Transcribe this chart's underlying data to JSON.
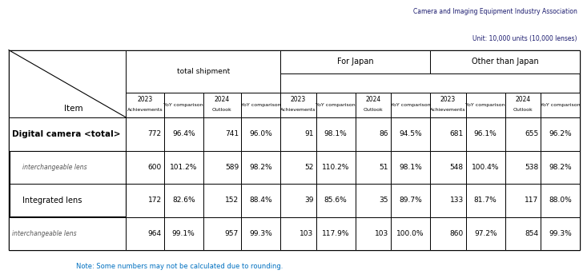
{
  "title_top_right": "Camera and Imaging Equipment Industry Association",
  "unit_label": "Unit: 10,000 units (10,000 lenses)",
  "note": "Note: Some numbers may not be calculated due to rounding.",
  "rows": [
    {
      "label": "Digital camera <total>",
      "label_size": 7.5,
      "label_weight": "bold",
      "label_style": "normal",
      "label_color": "#000000",
      "indent": 0,
      "values": [
        "772",
        "96.4%",
        "741",
        "96.0%",
        "91",
        "98.1%",
        "86",
        "94.5%",
        "681",
        "96.1%",
        "655",
        "96.2%"
      ]
    },
    {
      "label": "interchangeable lens",
      "label_size": 5.5,
      "label_weight": "normal",
      "label_style": "italic",
      "label_color": "#555555",
      "indent": 1,
      "values": [
        "600",
        "101.2%",
        "589",
        "98.2%",
        "52",
        "110.2%",
        "51",
        "98.1%",
        "548",
        "100.4%",
        "538",
        "98.2%"
      ]
    },
    {
      "label": "Integrated lens",
      "label_size": 7.0,
      "label_weight": "normal",
      "label_style": "normal",
      "label_color": "#000000",
      "indent": 1,
      "values": [
        "172",
        "82.6%",
        "152",
        "88.4%",
        "39",
        "85.6%",
        "35",
        "89.7%",
        "133",
        "81.7%",
        "117",
        "88.0%"
      ]
    },
    {
      "label": "interchangeable lens",
      "label_size": 5.5,
      "label_weight": "normal",
      "label_style": "italic",
      "label_color": "#555555",
      "indent": 0,
      "values": [
        "964",
        "99.1%",
        "957",
        "99.3%",
        "103",
        "117.9%",
        "103",
        "100.0%",
        "860",
        "97.2%",
        "854",
        "99.3%"
      ]
    }
  ],
  "text_color_dark": "#1a1a6e",
  "note_color": "#0070c0",
  "sub_headers": [
    "2023",
    "Achievements",
    "YoY comparison",
    "2024",
    "Outlook",
    "YoY comparison",
    "2023",
    "Achievements",
    "YoY comparison",
    "2024",
    "Outlook",
    "YoY comparison",
    "2023",
    "Achievements",
    "YoY comparison",
    "2024",
    "Outlook",
    "YoY comparison"
  ]
}
